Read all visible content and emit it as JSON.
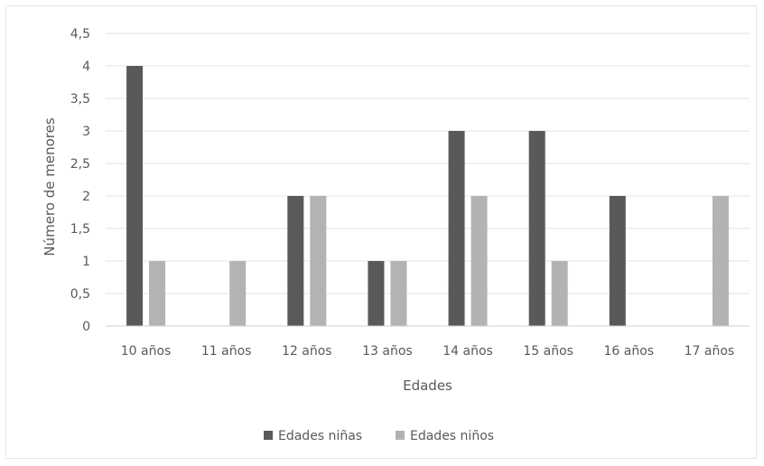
{
  "chart_data": {
    "type": "bar",
    "title": "",
    "xlabel": "Edades",
    "ylabel": "Número de menores",
    "categories": [
      "10 años",
      "11 años",
      "12 años",
      "13 años",
      "14 años",
      "15 años",
      "16 años",
      "17 años"
    ],
    "series": [
      {
        "name": "Edades niñas",
        "color": "#595959",
        "values": [
          4,
          0,
          2,
          1,
          3,
          3,
          2,
          0
        ]
      },
      {
        "name": "Edades niños",
        "color": "#b3b3b3",
        "values": [
          1,
          1,
          2,
          1,
          2,
          1,
          0,
          2
        ]
      }
    ],
    "ylim": [
      0,
      4.5
    ],
    "yticks": [
      "0",
      "0,5",
      "1",
      "1,5",
      "2",
      "2,5",
      "3",
      "3,5",
      "4",
      "4,5"
    ],
    "grid": true,
    "legend_position": "bottom"
  }
}
